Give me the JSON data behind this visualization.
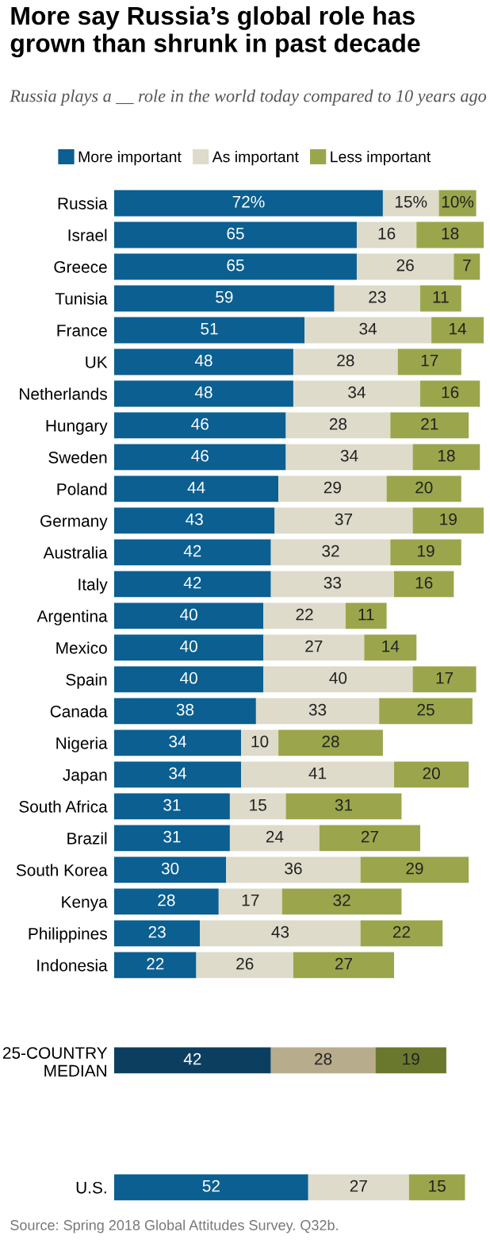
{
  "chart_data": {
    "type": "bar",
    "orientation": "horizontal",
    "stacked": true,
    "tick_labels": "y",
    "legend": "top",
    "grid": false,
    "title": "More say Russia’s global role has grown than shrunk in past decade",
    "subtitle": "Russia plays a __ role in the world today compared to 10 years ago",
    "annotations": [
      "Source: Spring 2018 Global Attitudes Survey. Q32b."
    ],
    "categories": [
      "Russia",
      "Israel",
      "Greece",
      "Tunisia",
      "France",
      "UK",
      "Netherlands",
      "Hungary",
      "Sweden",
      "Poland",
      "Germany",
      "Australia",
      "Italy",
      "Argentina",
      "Mexico",
      "Spain",
      "Canada",
      "Nigeria",
      "Japan",
      "South Africa",
      "Brazil",
      "South Korea",
      "Kenya",
      "Philippines",
      "Indonesia",
      null,
      null,
      "25-COUNTRY MEDIAN",
      null,
      null,
      null,
      "U.S."
    ],
    "series": [
      {
        "name": "More important",
        "color": "#0b5f91",
        "colors": [
          "#0b5f91",
          "#0b5f91",
          "#0b5f91",
          "#0b5f91",
          "#0b5f91",
          "#0b5f91",
          "#0b5f91",
          "#0b5f91",
          "#0b5f91",
          "#0b5f91",
          "#0b5f91",
          "#0b5f91",
          "#0b5f91",
          "#0b5f91",
          "#0b5f91",
          "#0b5f91",
          "#0b5f91",
          "#0b5f91",
          "#0b5f91",
          "#0b5f91",
          "#0b5f91",
          "#0b5f91",
          "#0b5f91",
          "#0b5f91",
          "#0b5f91",
          null,
          null,
          "#0c3f5f",
          null,
          null,
          null,
          "#0b5f91"
        ],
        "values": [
          72,
          65,
          65,
          59,
          51,
          48,
          48,
          46,
          46,
          44,
          43,
          42,
          42,
          40,
          40,
          40,
          38,
          34,
          34,
          31,
          31,
          30,
          28,
          23,
          22,
          null,
          null,
          42,
          null,
          null,
          null,
          52
        ],
        "value_labels": [
          "72%",
          "65",
          "65",
          "59",
          "51",
          "48",
          "48",
          "46",
          "46",
          "44",
          "43",
          "42",
          "42",
          "40",
          "40",
          "40",
          "38",
          "34",
          "34",
          "31",
          "31",
          "30",
          "28",
          "23",
          "22",
          null,
          null,
          "42",
          null,
          null,
          null,
          "52"
        ]
      },
      {
        "name": "As important",
        "color": "#dedbcb",
        "colors": [
          "#dedbcb",
          "#dedbcb",
          "#dedbcb",
          "#dedbcb",
          "#dedbcb",
          "#dedbcb",
          "#dedbcb",
          "#dedbcb",
          "#dedbcb",
          "#dedbcb",
          "#dedbcb",
          "#dedbcb",
          "#dedbcb",
          "#dedbcb",
          "#dedbcb",
          "#dedbcb",
          "#dedbcb",
          "#dedbcb",
          "#dedbcb",
          "#dedbcb",
          "#dedbcb",
          "#dedbcb",
          "#dedbcb",
          "#dedbcb",
          "#dedbcb",
          null,
          null,
          "#b7ac8c",
          null,
          null,
          null,
          "#dedbcb"
        ],
        "values": [
          15,
          16,
          26,
          23,
          34,
          28,
          34,
          28,
          34,
          29,
          37,
          32,
          33,
          22,
          27,
          40,
          33,
          10,
          41,
          15,
          24,
          36,
          17,
          43,
          26,
          null,
          null,
          28,
          null,
          null,
          null,
          27
        ],
        "value_labels": [
          "15%",
          "16",
          "26",
          "23",
          "34",
          "28",
          "34",
          "28",
          "34",
          "29",
          "37",
          "32",
          "33",
          "22",
          "27",
          "40",
          "33",
          "10",
          "41",
          "15",
          "24",
          "36",
          "17",
          "43",
          "26",
          null,
          null,
          "28",
          null,
          null,
          null,
          "27"
        ]
      },
      {
        "name": "Less important",
        "color": "#9ba64c",
        "colors": [
          "#9ba64c",
          "#9ba64c",
          "#9ba64c",
          "#9ba64c",
          "#9ba64c",
          "#9ba64c",
          "#9ba64c",
          "#9ba64c",
          "#9ba64c",
          "#9ba64c",
          "#9ba64c",
          "#9ba64c",
          "#9ba64c",
          "#9ba64c",
          "#9ba64c",
          "#9ba64c",
          "#9ba64c",
          "#9ba64c",
          "#9ba64c",
          "#9ba64c",
          "#9ba64c",
          "#9ba64c",
          "#9ba64c",
          "#9ba64c",
          "#9ba64c",
          null,
          null,
          "#6a782e",
          null,
          null,
          null,
          "#9ba64c"
        ],
        "values": [
          10,
          18,
          7,
          11,
          14,
          17,
          16,
          21,
          18,
          20,
          19,
          19,
          16,
          11,
          14,
          17,
          25,
          28,
          20,
          31,
          27,
          29,
          32,
          22,
          27,
          null,
          null,
          19,
          null,
          null,
          null,
          15
        ],
        "value_labels": [
          "10%",
          "18",
          "7",
          "11",
          "14",
          "17",
          "16",
          "21",
          "18",
          "20",
          "19",
          "19",
          "16",
          "11",
          "14",
          "17",
          "25",
          "28",
          "20",
          "31",
          "27",
          "29",
          "32",
          "22",
          "27",
          null,
          null,
          "19",
          null,
          null,
          null,
          "15"
        ]
      }
    ]
  }
}
